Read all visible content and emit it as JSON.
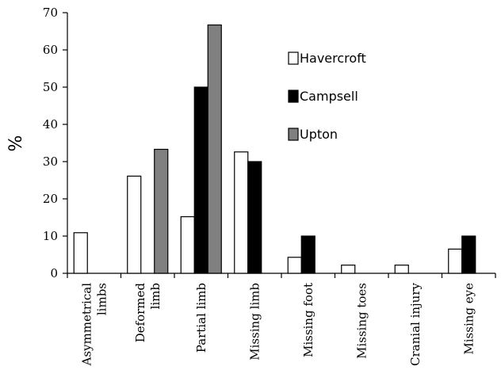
{
  "chart_data": {
    "type": "bar",
    "categories": [
      "Asymmetrical limbs",
      "Deformed limb",
      "Partial limb",
      "Missing limb",
      "Missing foot",
      "Missing toes",
      "Cranial injury",
      "Missing eye"
    ],
    "category_lines": [
      [
        "Asymmetrical",
        "limbs"
      ],
      [
        "Deformed",
        "limb"
      ],
      [
        "Partial limb"
      ],
      [
        "Missing limb"
      ],
      [
        "Missing foot"
      ],
      [
        "Missing toes"
      ],
      [
        "Cranial injury"
      ],
      [
        "Missing eye"
      ]
    ],
    "series": [
      {
        "name": "Havercroft",
        "color": "#ffffff",
        "values": [
          10.9,
          26.1,
          15.2,
          32.6,
          4.3,
          2.2,
          2.2,
          6.5
        ]
      },
      {
        "name": "Campsell",
        "color": "#000000",
        "values": [
          0,
          0,
          50,
          30,
          10,
          0,
          0,
          10
        ]
      },
      {
        "name": "Upton",
        "color": "#808080",
        "values": [
          0,
          33.3,
          66.7,
          0,
          0,
          0,
          0,
          0
        ]
      }
    ],
    "ylabel": "%",
    "ylim": [
      0,
      70
    ],
    "yticks": [
      0,
      10,
      20,
      30,
      40,
      50,
      60,
      70
    ],
    "grid": false,
    "legend_position": "top-right"
  }
}
